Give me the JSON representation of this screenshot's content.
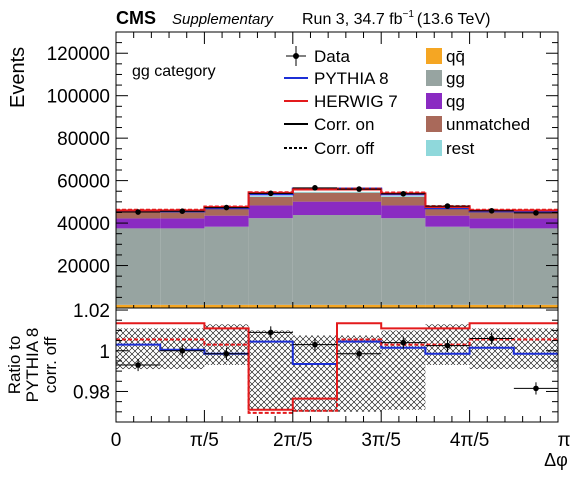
{
  "header": {
    "experiment": "CMS",
    "qualifier": "Supplementary",
    "run_text": "Run 3, 34.7 fb",
    "lumi_exp": "−1",
    "energy": "(13.6 TeV)"
  },
  "category_label": "gg category",
  "axes": {
    "ylabel_top": "Events",
    "ylabel_ratio_lines": [
      "Ratio to",
      "PYTHIA 8",
      "corr. off"
    ],
    "xlabel": "Δφ",
    "xticks": [
      "0",
      "π/5",
      "2π/5",
      "3π/5",
      "4π/5",
      "π"
    ],
    "yticks_top": [
      "20000",
      "40000",
      "60000",
      "80000",
      "100000",
      "120000"
    ],
    "yticks_ratio": [
      "0.98",
      "1",
      "1.02"
    ]
  },
  "legend": {
    "left": [
      {
        "key": "data",
        "label": "Data"
      },
      {
        "key": "pythia",
        "label": "PYTHIA 8"
      },
      {
        "key": "herwig",
        "label": "HERWIG 7"
      },
      {
        "key": "corr_on",
        "label": "Corr. on"
      },
      {
        "key": "corr_off",
        "label": "Corr. off"
      }
    ],
    "right": [
      {
        "key": "qqbar",
        "label": "qq̄"
      },
      {
        "key": "gg",
        "label": "gg"
      },
      {
        "key": "qg",
        "label": "qg"
      },
      {
        "key": "unmatched",
        "label": "unmatched"
      },
      {
        "key": "rest",
        "label": "rest"
      }
    ]
  },
  "colors": {
    "qqbar": "#f5a623",
    "gg": "#97a4a1",
    "qg": "#8a2bc2",
    "unmatched": "#a9695a",
    "rest": "#8fd8db",
    "pythia": "#1c2fd6",
    "herwig": "#e31a1c",
    "data": "#000000"
  },
  "chart_data": [
    {
      "type": "bar",
      "panel": "main",
      "stacked": true,
      "x_range": [
        0,
        3.14159
      ],
      "bin_edges": [
        0,
        0.3142,
        0.6283,
        0.9425,
        1.2566,
        1.5708,
        1.885,
        2.1991,
        2.5133,
        2.8274,
        3.1416
      ],
      "ylim": [
        0,
        130000
      ],
      "series": [
        {
          "name": "qq̄",
          "key": "qqbar",
          "values": [
            1500,
            1500,
            1500,
            1500,
            1500,
            1500,
            1500,
            1500,
            1500,
            1500
          ]
        },
        {
          "name": "gg",
          "key": "gg",
          "values": [
            36000,
            36000,
            36800,
            40800,
            42300,
            42300,
            40800,
            36800,
            36000,
            36000
          ]
        },
        {
          "name": "qg",
          "key": "qg",
          "values": [
            4700,
            4700,
            5200,
            6000,
            6300,
            6300,
            6000,
            5200,
            4700,
            4700
          ]
        },
        {
          "name": "unmatched",
          "key": "unmatched",
          "values": [
            3000,
            3000,
            3300,
            4000,
            4200,
            4200,
            4000,
            3300,
            3000,
            3000
          ]
        },
        {
          "name": "rest",
          "key": "rest",
          "values": [
            400,
            400,
            400,
            400,
            400,
            400,
            400,
            400,
            400,
            400
          ]
        }
      ],
      "lines": [
        {
          "name": "PYTHIA 8",
          "key": "pythia",
          "style": "solid",
          "values": [
            45500,
            45500,
            47000,
            53500,
            56300,
            56300,
            53500,
            47000,
            45500,
            45500
          ]
        },
        {
          "name": "HERWIG 7",
          "key": "herwig",
          "style": "solid",
          "values": [
            46000,
            46000,
            47500,
            54200,
            55800,
            55800,
            54000,
            47600,
            46000,
            46000
          ]
        },
        {
          "name": "HERWIG 7 corr. off",
          "key": "herwig",
          "style": "dashed",
          "values": [
            46300,
            46300,
            47800,
            54500,
            56200,
            56200,
            54400,
            48000,
            46300,
            46300
          ]
        }
      ],
      "points": {
        "name": "Data",
        "x": [
          0.157,
          0.471,
          0.785,
          1.1,
          1.414,
          1.728,
          2.042,
          2.356,
          2.67,
          2.985
        ],
        "y": [
          45200,
          45600,
          47300,
          54000,
          56600,
          56000,
          53800,
          48000,
          45800,
          44800
        ]
      }
    },
    {
      "type": "bar",
      "panel": "ratio",
      "x_range": [
        0,
        3.14159
      ],
      "bin_edges": [
        0,
        0.3142,
        0.6283,
        0.9425,
        1.2566,
        1.5708,
        1.885,
        2.1991,
        2.5133,
        2.8274,
        3.1416
      ],
      "ylim": [
        0.965,
        1.021
      ],
      "uncertainty_band": {
        "up": [
          1.011,
          1.011,
          1.013,
          1.01,
          1.0075,
          1.0075,
          1.01,
          1.013,
          1.011,
          1.011
        ],
        "down": [
          0.991,
          0.991,
          0.993,
          0.971,
          0.97,
          0.97,
          0.971,
          0.993,
          0.991,
          0.991
        ]
      },
      "lines": [
        {
          "name": "PYTHIA 8 corr. on",
          "key": "pythia",
          "style": "solid",
          "values": [
            1.003,
            1.0005,
            0.9985,
            1.0045,
            0.9935,
            1.0045,
            1.0015,
            0.9985,
            1.0015,
            0.9985
          ]
        },
        {
          "name": "HERWIG 7 corr. on",
          "key": "herwig",
          "style": "solid",
          "values": [
            1.0135,
            1.0135,
            1.011,
            0.971,
            0.9765,
            1.0135,
            1.011,
            1.011,
            1.0135,
            1.0135
          ]
        },
        {
          "name": "HERWIG 7 corr. off",
          "key": "herwig",
          "style": "dashed",
          "values": [
            1.0055,
            1.0055,
            1.003,
            0.9695,
            0.9705,
            1.0055,
            1.003,
            1.003,
            1.0055,
            1.0055
          ]
        }
      ],
      "points": {
        "name": "Data",
        "x": [
          0.157,
          0.471,
          0.785,
          1.1,
          1.414,
          1.728,
          2.042,
          2.356,
          2.67,
          2.985
        ],
        "y": [
          0.993,
          1.0,
          0.9985,
          1.009,
          1.003,
          0.9985,
          1.004,
          1.0025,
          1.006,
          0.9815
        ],
        "err": [
          0.003,
          0.003,
          0.003,
          0.003,
          0.003,
          0.003,
          0.003,
          0.003,
          0.003,
          0.003
        ]
      }
    }
  ]
}
